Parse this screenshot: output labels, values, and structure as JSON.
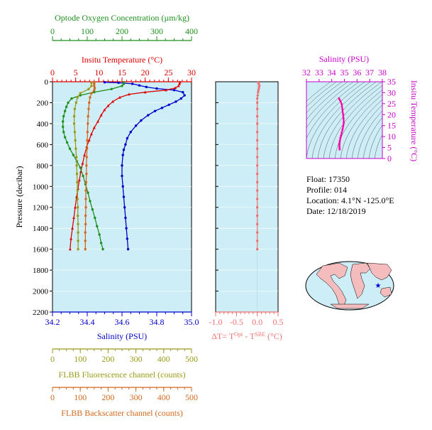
{
  "info": {
    "float": "Float:  17350",
    "profile": "Profile:  014",
    "location": "Location:  4.1°N  -125.0°E",
    "date": "Date:  12/18/2019"
  },
  "colors": {
    "panel_bg": "#cdeef6",
    "salinity": "#0000cc",
    "temperature": "#e00000",
    "oxygen": "#1f8f1f",
    "fluorescence": "#9a9a1a",
    "backscatter": "#d2691e",
    "delta_t": "#f07070",
    "ts_axis": "#cc00cc",
    "axis": "#000000"
  },
  "chart_data": [
    {
      "type": "line",
      "title": "",
      "ylabel": "Pressure (decibar)",
      "ylim": [
        2200,
        0
      ],
      "yticks": [
        0,
        200,
        400,
        600,
        800,
        1000,
        1200,
        1400,
        1600,
        1800,
        2000,
        2200
      ],
      "ytick_labels": [
        "0",
        "200",
        "400",
        "600",
        "800",
        "1000",
        "1200",
        "1400",
        "1600",
        "1800",
        "2000",
        "2200"
      ],
      "axes": {
        "salinity": {
          "label": "Salinity (PSU)",
          "range": [
            34.2,
            35.0
          ],
          "ticks": [
            "34.2",
            "34.4",
            "34.6",
            "34.8",
            "35.0"
          ]
        },
        "temperature": {
          "label": "Insitu Temperature (°C)",
          "range": [
            0,
            30
          ],
          "ticks": [
            "0",
            "5",
            "10",
            "15",
            "20",
            "25",
            "30"
          ]
        },
        "oxygen": {
          "label": "Optode Oxygen Concentration (µm/kg)",
          "range": [
            0,
            400
          ],
          "ticks": [
            "0",
            "100",
            "200",
            "300",
            "400"
          ]
        },
        "fluorescence": {
          "label": "FLBB Fluorescence channel (counts)",
          "range": [
            0,
            500
          ],
          "ticks": [
            "0",
            "100",
            "200",
            "300",
            "400",
            "500"
          ]
        },
        "backscatter": {
          "label": "FLBB Backscatter channel (counts)",
          "range": [
            0,
            500
          ],
          "ticks": [
            "0",
            "100",
            "200",
            "300",
            "400",
            "500"
          ]
        }
      },
      "series": [
        {
          "name": "Salinity",
          "axis": "salinity",
          "points": [
            [
              34.5,
              5
            ],
            [
              34.58,
              10
            ],
            [
              34.66,
              20
            ],
            [
              34.7,
              35
            ],
            [
              34.74,
              50
            ],
            [
              34.8,
              65
            ],
            [
              34.9,
              80
            ],
            [
              34.95,
              100
            ],
            [
              34.96,
              130
            ],
            [
              34.94,
              160
            ],
            [
              34.91,
              190
            ],
            [
              34.87,
              220
            ],
            [
              34.83,
              250
            ],
            [
              34.79,
              280
            ],
            [
              34.75,
              320
            ],
            [
              34.71,
              370
            ],
            [
              34.68,
              420
            ],
            [
              34.65,
              480
            ],
            [
              34.63,
              540
            ],
            [
              34.62,
              600
            ],
            [
              34.61,
              650
            ],
            [
              34.605,
              700
            ],
            [
              34.6,
              800
            ],
            [
              34.6,
              900
            ],
            [
              34.605,
              1000
            ],
            [
              34.61,
              1100
            ],
            [
              34.615,
              1200
            ],
            [
              34.62,
              1300
            ],
            [
              34.625,
              1400
            ],
            [
              34.63,
              1500
            ],
            [
              34.635,
              1600
            ]
          ]
        },
        {
          "name": "Temperature",
          "axis": "temperature",
          "points": [
            [
              27.5,
              5
            ],
            [
              27.4,
              20
            ],
            [
              27.2,
              40
            ],
            [
              26.5,
              60
            ],
            [
              24.5,
              80
            ],
            [
              20.0,
              100
            ],
            [
              16.5,
              120
            ],
            [
              14.5,
              150
            ],
            [
              13.0,
              190
            ],
            [
              12.0,
              230
            ],
            [
              11.2,
              270
            ],
            [
              10.5,
              320
            ],
            [
              9.8,
              380
            ],
            [
              9.0,
              440
            ],
            [
              8.4,
              500
            ],
            [
              7.9,
              560
            ],
            [
              7.4,
              620
            ],
            [
              6.9,
              700
            ],
            [
              6.5,
              780
            ],
            [
              6.1,
              860
            ],
            [
              5.8,
              940
            ],
            [
              5.5,
              1020
            ],
            [
              5.2,
              1100
            ],
            [
              4.9,
              1200
            ],
            [
              4.6,
              1300
            ],
            [
              4.3,
              1400
            ],
            [
              4.0,
              1500
            ],
            [
              3.8,
              1600
            ]
          ]
        },
        {
          "name": "Oxygen",
          "axis": "oxygen",
          "points": [
            [
              205,
              5
            ],
            [
              205,
              20
            ],
            [
              200,
              40
            ],
            [
              170,
              70
            ],
            [
              120,
              100
            ],
            [
              80,
              130
            ],
            [
              55,
              160
            ],
            [
              45,
              200
            ],
            [
              40,
              240
            ],
            [
              36,
              280
            ],
            [
              32,
              330
            ],
            [
              30,
              380
            ],
            [
              30,
              430
            ],
            [
              32,
              480
            ],
            [
              36,
              530
            ],
            [
              42,
              580
            ],
            [
              50,
              640
            ],
            [
              60,
              700
            ],
            [
              70,
              760
            ],
            [
              80,
              820
            ],
            [
              88,
              900
            ],
            [
              95,
              980
            ],
            [
              102,
              1060
            ],
            [
              108,
              1140
            ],
            [
              115,
              1220
            ],
            [
              122,
              1300
            ],
            [
              128,
              1380
            ],
            [
              135,
              1460
            ],
            [
              140,
              1540
            ],
            [
              145,
              1600
            ]
          ]
        },
        {
          "name": "Fluorescence",
          "axis": "fluorescence",
          "points": [
            [
              140,
              10
            ],
            [
              140,
              40
            ],
            [
              130,
              70
            ],
            [
              100,
              110
            ],
            [
              90,
              150
            ],
            [
              85,
              200
            ],
            [
              80,
              260
            ],
            [
              78,
              330
            ],
            [
              78,
              400
            ],
            [
              80,
              480
            ],
            [
              82,
              560
            ],
            [
              84,
              640
            ],
            [
              86,
              720
            ],
            [
              87,
              800
            ],
            [
              88,
              880
            ],
            [
              89,
              960
            ],
            [
              90,
              1040
            ],
            [
              90,
              1120
            ],
            [
              91,
              1200
            ],
            [
              91,
              1280
            ],
            [
              92,
              1360
            ],
            [
              92,
              1440
            ],
            [
              92,
              1520
            ],
            [
              92,
              1600
            ]
          ]
        },
        {
          "name": "Backscatter",
          "axis": "backscatter",
          "points": [
            [
              150,
              5
            ],
            [
              150,
              20
            ],
            [
              150,
              40
            ],
            [
              152,
              60
            ],
            [
              150,
              80
            ],
            [
              140,
              110
            ],
            [
              135,
              150
            ],
            [
              132,
              200
            ],
            [
              130,
              260
            ],
            [
              128,
              330
            ],
            [
              127,
              400
            ],
            [
              126,
              480
            ],
            [
              125,
              560
            ],
            [
              124,
              640
            ],
            [
              123,
              720
            ],
            [
              122,
              800
            ],
            [
              122,
              880
            ],
            [
              121,
              960
            ],
            [
              120,
              1040
            ],
            [
              120,
              1120
            ],
            [
              120,
              1200
            ],
            [
              119,
              1280
            ],
            [
              119,
              1360
            ],
            [
              118,
              1440
            ],
            [
              118,
              1520
            ],
            [
              118,
              1600
            ]
          ]
        }
      ]
    },
    {
      "type": "scatter",
      "title": "",
      "xlabel": "ΔT= T^Opt - T^SBE (°C)",
      "xlim": [
        -1.0,
        0.5
      ],
      "xticks": [
        "-1.0",
        "-0.5",
        "0.0",
        "0.5"
      ],
      "ylim": [
        2200,
        0
      ],
      "series": [
        {
          "name": "ΔT",
          "points": [
            [
              0.02,
              5
            ],
            [
              0.04,
              20
            ],
            [
              0.05,
              40
            ],
            [
              0.04,
              60
            ],
            [
              0.03,
              80
            ],
            [
              0.02,
              100
            ],
            [
              0.01,
              130
            ],
            [
              0.0,
              160
            ],
            [
              0.0,
              200
            ],
            [
              0.0,
              260
            ],
            [
              0.0,
              330
            ],
            [
              0.0,
              400
            ],
            [
              0.0,
              480
            ],
            [
              0.0,
              560
            ],
            [
              0.0,
              640
            ],
            [
              0.0,
              720
            ],
            [
              0.0,
              800
            ],
            [
              0.0,
              880
            ],
            [
              0.0,
              960
            ],
            [
              0.0,
              1040
            ],
            [
              0.0,
              1120
            ],
            [
              0.0,
              1200
            ],
            [
              0.0,
              1280
            ],
            [
              0.0,
              1360
            ],
            [
              0.0,
              1440
            ],
            [
              0.0,
              1520
            ],
            [
              0.0,
              1600
            ]
          ]
        }
      ]
    },
    {
      "type": "scatter",
      "title": "",
      "xlabel": "Salinity (PSU)",
      "ylabel": "Insitu Temperature (°C)",
      "xlim": [
        32,
        38
      ],
      "ylim": [
        0,
        35
      ],
      "xticks": [
        "32",
        "33",
        "34",
        "35",
        "36",
        "37",
        "38"
      ],
      "yticks": [
        "0",
        "5",
        "10",
        "15",
        "20",
        "25",
        "30",
        "35"
      ],
      "series": [
        {
          "name": "T-S",
          "points": [
            [
              34.55,
              27.3
            ],
            [
              34.6,
              27.0
            ],
            [
              34.7,
              26.0
            ],
            [
              34.8,
              24.5
            ],
            [
              34.85,
              22.0
            ],
            [
              34.9,
              20.0
            ],
            [
              34.93,
              18.0
            ],
            [
              34.95,
              16.0
            ],
            [
              34.9,
              14.5
            ],
            [
              34.85,
              13.0
            ],
            [
              34.78,
              11.5
            ],
            [
              34.72,
              10.0
            ],
            [
              34.68,
              9.0
            ],
            [
              34.64,
              8.0
            ],
            [
              34.62,
              7.0
            ],
            [
              34.61,
              6.0
            ],
            [
              34.61,
              5.0
            ],
            [
              34.62,
              4.3
            ],
            [
              34.63,
              3.8
            ]
          ]
        }
      ]
    }
  ]
}
